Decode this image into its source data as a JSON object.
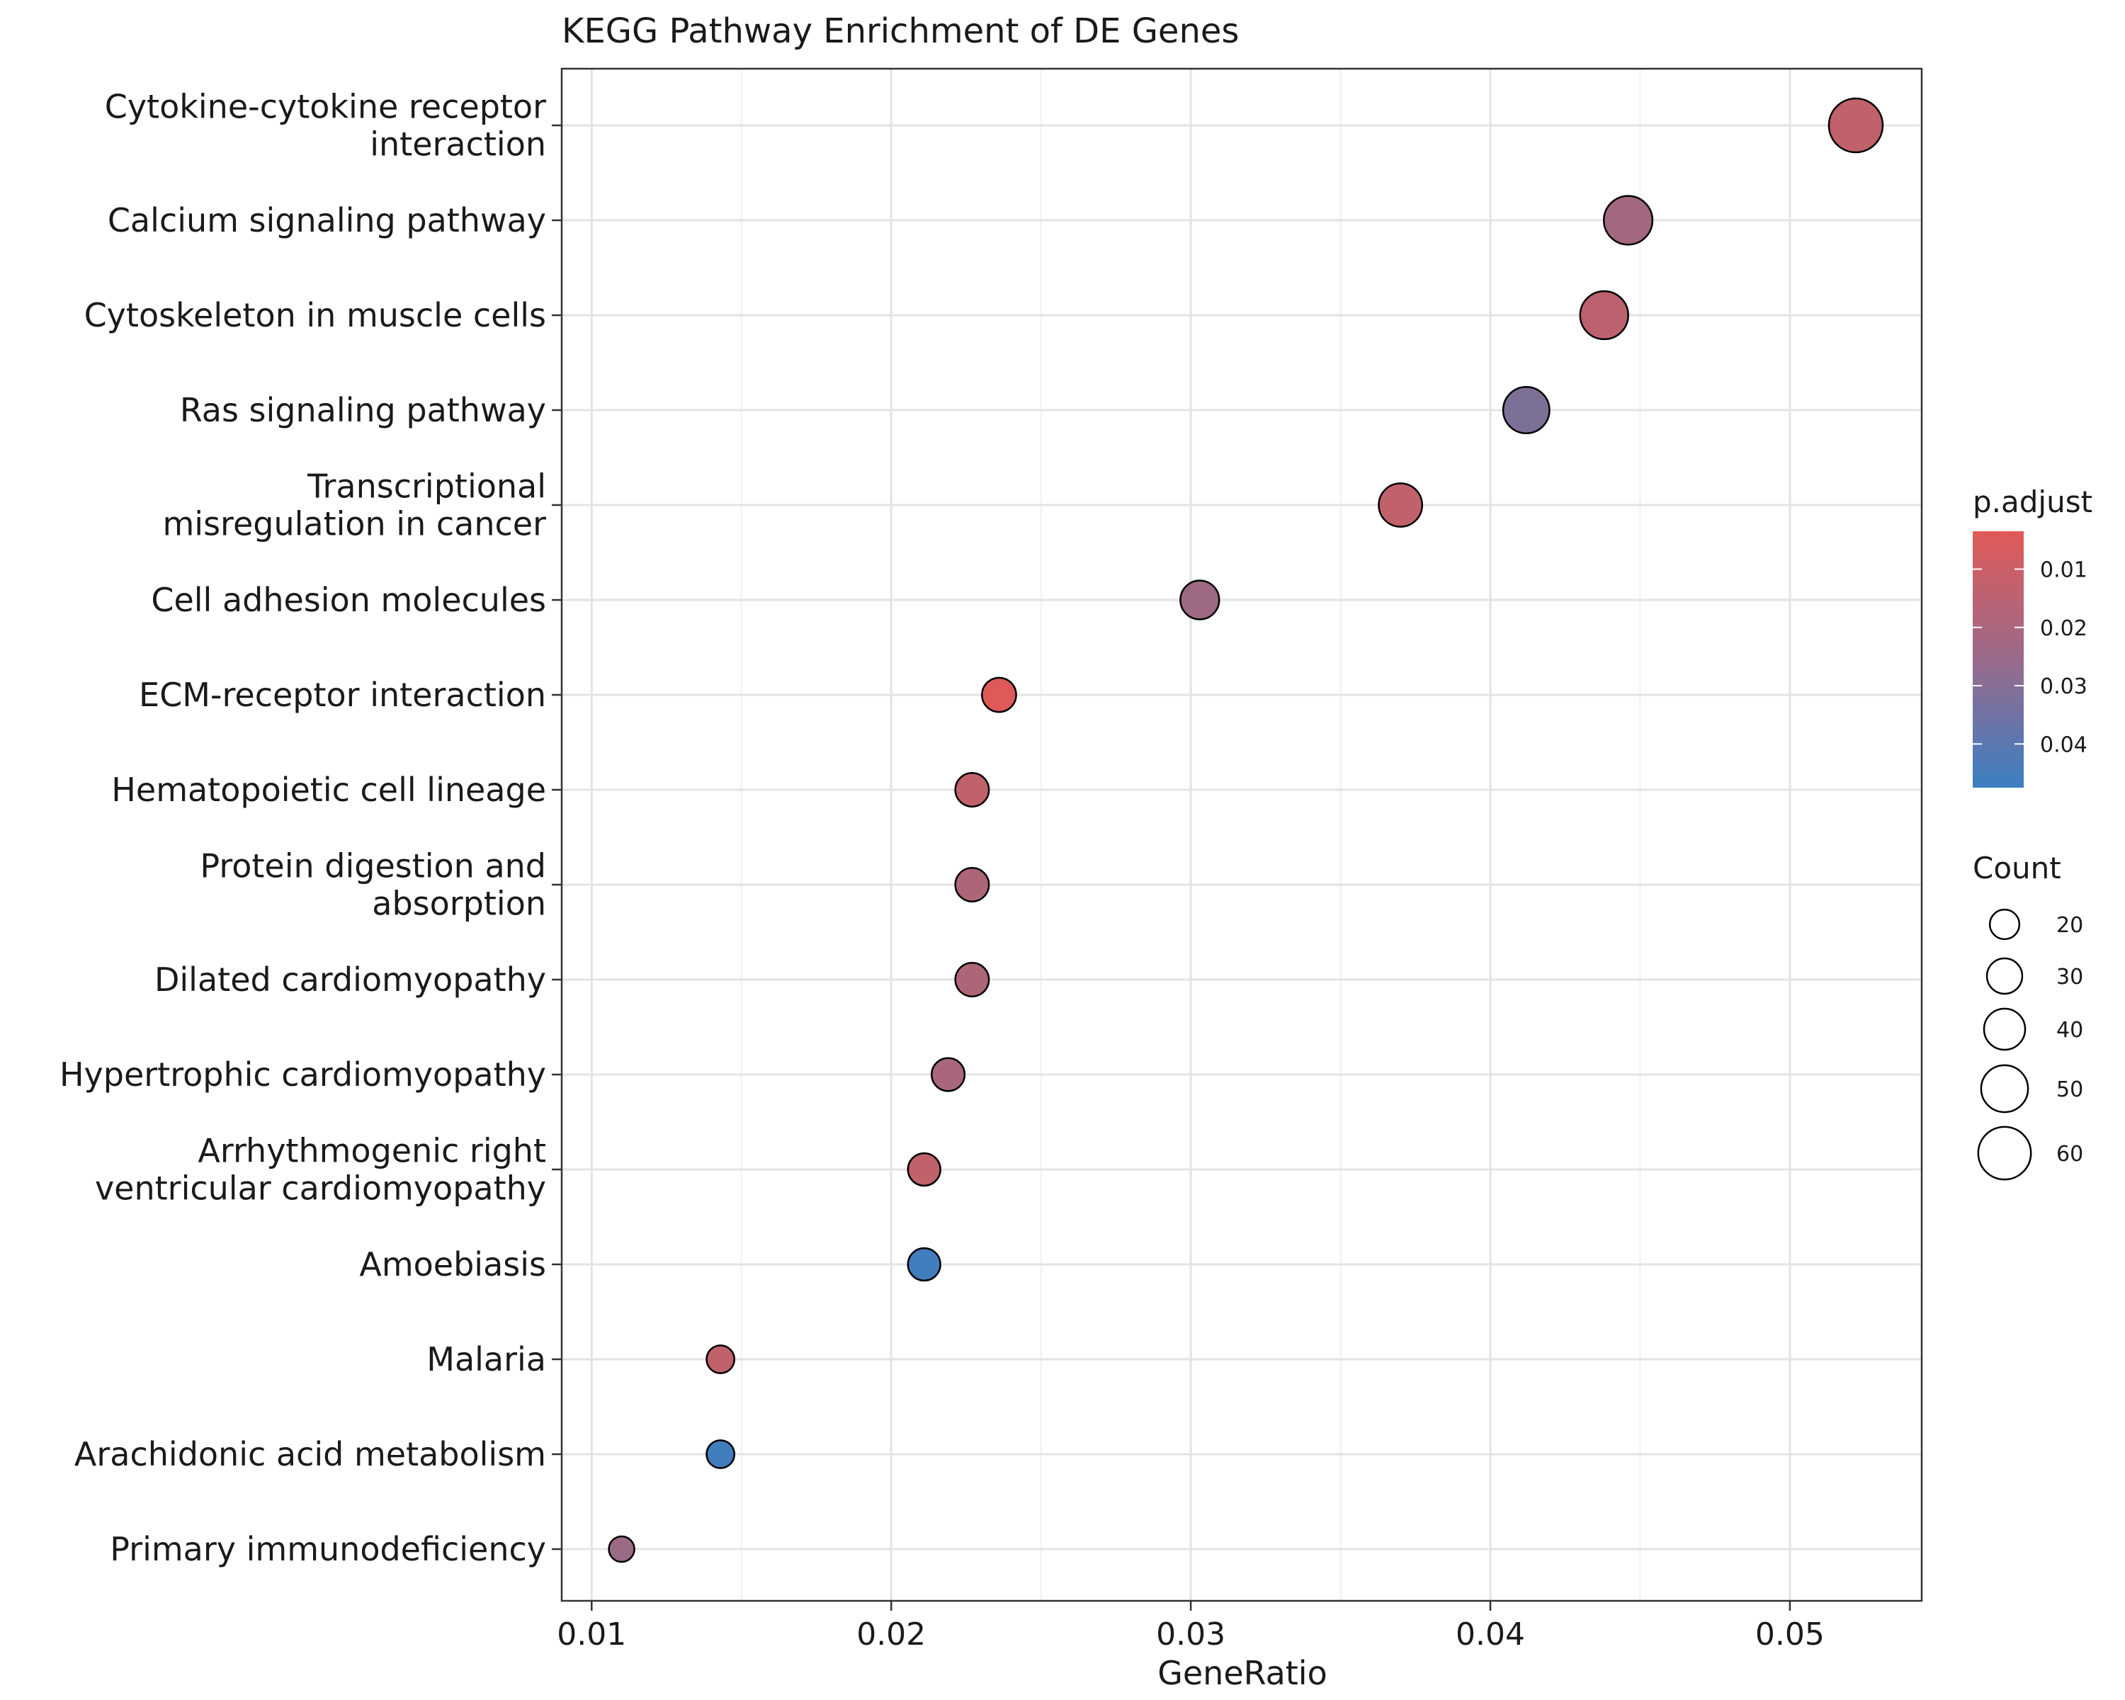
{
  "chart_data": {
    "type": "scatter",
    "title": "KEGG Pathway Enrichment of DE Genes",
    "xlabel": "GeneRatio",
    "ylabel": "",
    "xlim": [
      0.009,
      0.0544
    ],
    "xticks": [
      0.01,
      0.02,
      0.03,
      0.04,
      0.05
    ],
    "xtick_labels": [
      "0.01",
      "0.02",
      "0.03",
      "0.04",
      "0.05"
    ],
    "grid": true,
    "categories": [
      "Cytokine-cytokine receptor\ninteraction",
      "Calcium signaling pathway",
      "Cytoskeleton in muscle cells",
      "Ras signaling pathway",
      "Transcriptional\nmisregulation in cancer",
      "Cell adhesion molecules",
      "ECM-receptor interaction",
      "Hematopoietic cell lineage",
      "Protein digestion and\nabsorption",
      "Dilated cardiomyopathy",
      "Hypertrophic cardiomyopathy",
      "Arrhythmogenic right\nventricular cardiomyopathy",
      "Amoebiasis",
      "Malaria",
      "Arachidonic acid metabolism",
      "Primary immunodeficiency"
    ],
    "points": [
      {
        "category": "Cytokine-cytokine receptor\ninteraction",
        "x": 0.0522,
        "count": 62,
        "p_adjust": 0.012
      },
      {
        "category": "Calcium signaling pathway",
        "x": 0.0446,
        "count": 53,
        "p_adjust": 0.02
      },
      {
        "category": "Cytoskeleton in muscle cells",
        "x": 0.0438,
        "count": 52,
        "p_adjust": 0.013
      },
      {
        "category": "Ras signaling pathway",
        "x": 0.0412,
        "count": 49,
        "p_adjust": 0.03
      },
      {
        "category": "Transcriptional\nmisregulation in cancer",
        "x": 0.037,
        "count": 44,
        "p_adjust": 0.012
      },
      {
        "category": "Cell adhesion molecules",
        "x": 0.0303,
        "count": 36,
        "p_adjust": 0.021
      },
      {
        "category": "ECM-receptor interaction",
        "x": 0.0236,
        "count": 28,
        "p_adjust": 0.004
      },
      {
        "category": "Hematopoietic cell lineage",
        "x": 0.0227,
        "count": 27,
        "p_adjust": 0.012
      },
      {
        "category": "Protein digestion and\nabsorption",
        "x": 0.0227,
        "count": 27,
        "p_adjust": 0.017
      },
      {
        "category": "Dilated cardiomyopathy",
        "x": 0.0227,
        "count": 27,
        "p_adjust": 0.017
      },
      {
        "category": "Hypertrophic cardiomyopathy",
        "x": 0.0219,
        "count": 26,
        "p_adjust": 0.018
      },
      {
        "category": "Arrhythmogenic right\nventricular cardiomyopathy",
        "x": 0.0211,
        "count": 25,
        "p_adjust": 0.012
      },
      {
        "category": "Amoebiasis",
        "x": 0.0211,
        "count": 25,
        "p_adjust": 0.046
      },
      {
        "category": "Malaria",
        "x": 0.0143,
        "count": 17,
        "p_adjust": 0.012
      },
      {
        "category": "Arachidonic acid metabolism",
        "x": 0.0143,
        "count": 17,
        "p_adjust": 0.046
      },
      {
        "category": "Primary immunodeficiency",
        "x": 0.011,
        "count": 13,
        "p_adjust": 0.022
      }
    ],
    "color_legend": {
      "title": "p.adjust",
      "ticks": [
        0.01,
        0.02,
        0.03,
        0.04
      ],
      "tick_labels": [
        "0.01",
        "0.02",
        "0.03",
        "0.04"
      ],
      "range": [
        0.0035,
        0.0475
      ],
      "low_color": "#e05a57",
      "high_color": "#3b7fc2"
    },
    "size_legend": {
      "title": "Count",
      "values": [
        20,
        30,
        40,
        50,
        60
      ],
      "labels": [
        "20",
        "30",
        "40",
        "50",
        "60"
      ],
      "count_range": [
        13,
        62
      ]
    }
  }
}
